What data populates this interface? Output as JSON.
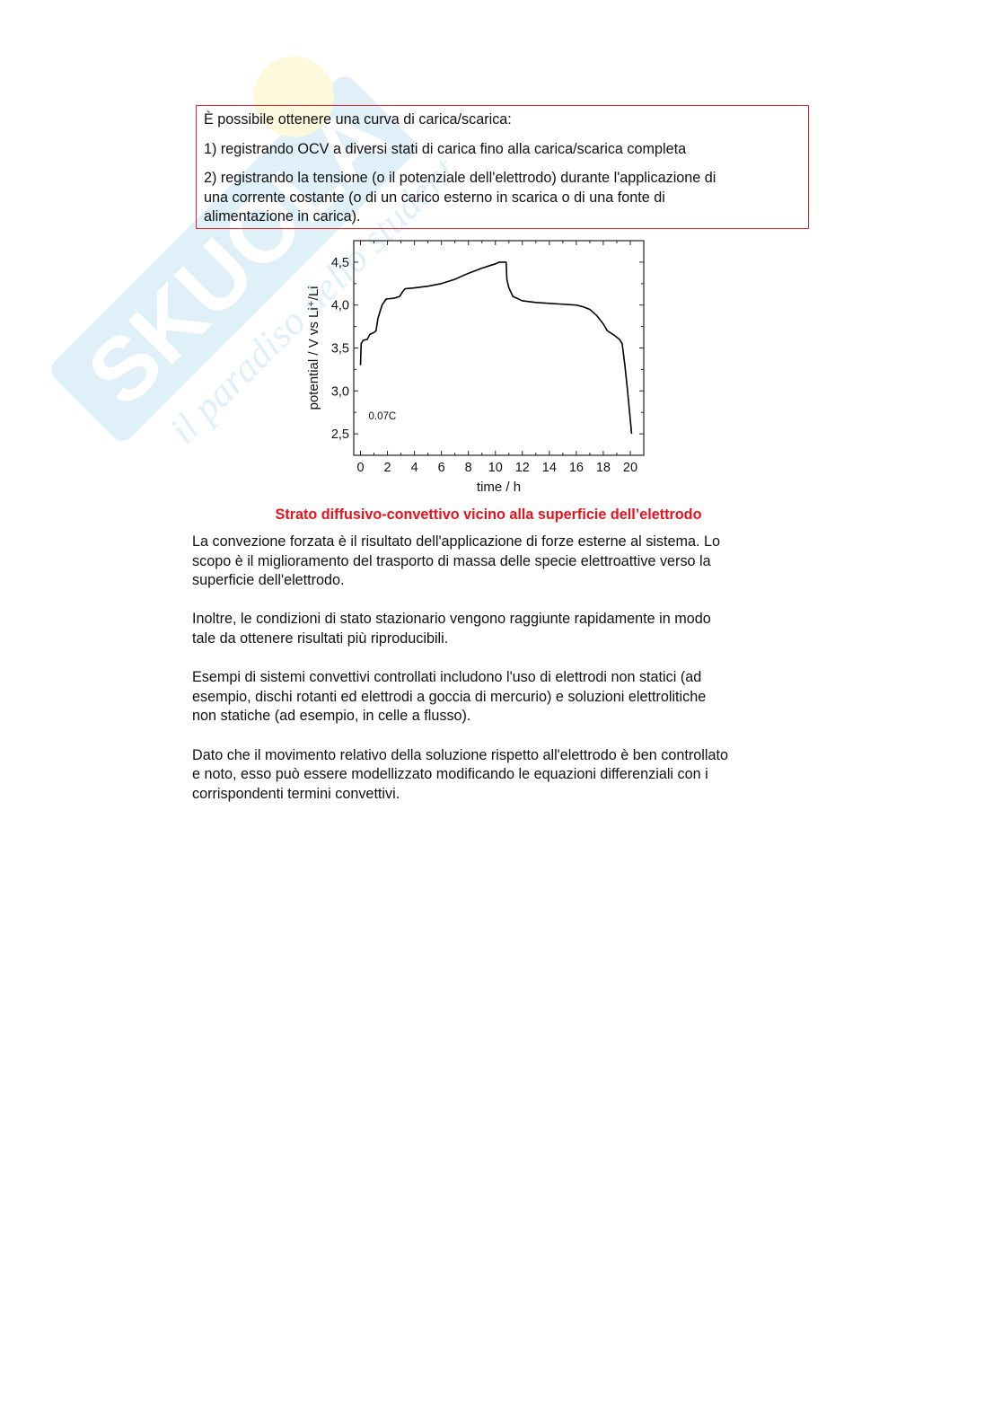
{
  "watermark": {
    "brand": "SKUOLA.net",
    "tagline": "il paradiso dello studente"
  },
  "box": {
    "lines": [
      "È possibile ottenere una curva di carica/scarica:",
      "1) registrando OCV a diversi stati di carica fino alla carica/scarica completa",
      "2) registrando la tensione (o il potenziale dell'elettrodo) durante l'applicazione di",
      "una corrente costante (o di un carico esterno in scarica o di una fonte di",
      "alimentazione in carica)."
    ],
    "border_color": "#e0262b"
  },
  "chart_data": {
    "type": "line",
    "xlabel": "time / h",
    "ylabel": "potential / V vs Li⁺/Li",
    "annotation": "0.07C",
    "xlim": [
      -0.5,
      21
    ],
    "ylim": [
      2.25,
      4.75
    ],
    "xticks": [
      0,
      2,
      4,
      6,
      8,
      10,
      12,
      14,
      16,
      18,
      20
    ],
    "xtick_labels": [
      "0",
      "2",
      "4",
      "6",
      "8",
      "10",
      "12",
      "14",
      "16",
      "18",
      "20"
    ],
    "yticks": [
      2.5,
      3.0,
      3.5,
      4.0,
      4.5
    ],
    "ytick_labels": [
      "2,5",
      "3,0",
      "3,5",
      "4,0",
      "4,5"
    ],
    "grid": false,
    "series": [
      {
        "x": [
          0,
          0.05,
          0.2,
          0.5,
          0.7,
          1.0,
          1.15,
          1.3,
          1.6,
          1.9,
          2.5,
          2.9,
          3.1,
          3.3,
          4,
          5,
          6,
          7,
          8,
          9,
          10,
          10.3,
          10.8,
          10.85,
          11,
          11.3,
          12,
          13,
          14,
          15,
          16,
          16.5,
          17,
          17.5,
          18,
          18.3,
          18.8,
          19.2,
          19.4,
          19.6,
          19.8,
          20.1
        ],
        "y": [
          3.3,
          3.55,
          3.59,
          3.6,
          3.66,
          3.68,
          3.7,
          3.85,
          4.0,
          4.07,
          4.08,
          4.1,
          4.15,
          4.19,
          4.2,
          4.22,
          4.25,
          4.3,
          4.37,
          4.43,
          4.48,
          4.5,
          4.5,
          4.3,
          4.2,
          4.1,
          4.05,
          4.03,
          4.02,
          4.01,
          4.0,
          3.98,
          3.95,
          3.88,
          3.78,
          3.7,
          3.65,
          3.6,
          3.55,
          3.3,
          3.0,
          2.5
        ],
        "color": "#000000"
      }
    ]
  },
  "heading": "Strato diffusivo-convettivo vicino alla superficie dell’elettrodo",
  "heading_color": "#e8121a",
  "paragraphs": [
    [
      "La convezione forzata è il risultato dell'applicazione di forze esterne al sistema. Lo",
      "scopo è il miglioramento del trasporto di massa delle specie elettroattive verso la",
      "superficie dell'elettrodo."
    ],
    [
      "Inoltre, le condizioni di stato stazionario vengono raggiunte rapidamente in modo",
      "tale da ottenere risultati più riproducibili."
    ],
    [
      "Esempi di sistemi convettivi controllati includono l'uso di elettrodi non statici (ad",
      "esempio, dischi rotanti ed elettrodi a goccia di mercurio) e soluzioni elettrolitiche",
      "non statiche (ad esempio, in celle a flusso)."
    ],
    [
      "Dato che il movimento relativo della soluzione rispetto all'elettrodo è ben controllato",
      "e noto, esso può essere modellizzato modificando le equazioni differenziali con i",
      "corrispondenti termini convettivi."
    ]
  ]
}
